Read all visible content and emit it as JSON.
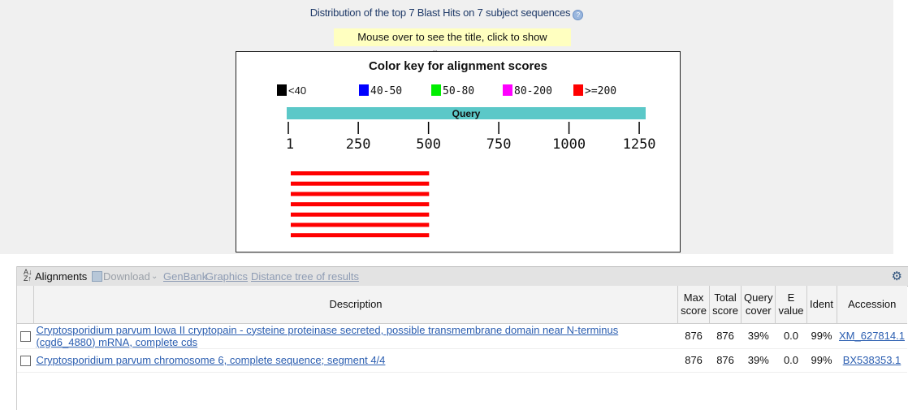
{
  "graphic": {
    "title": "Distribution of the top 7 Blast Hits on 7 subject sequences",
    "hint": "Mouse over to see the title, click to show alignments",
    "colorkey_title": "Color key for alignment scores",
    "legend": [
      {
        "label": "<40",
        "color": "#000000"
      },
      {
        "label": "40-50",
        "color": "#0000ff"
      },
      {
        "label": "50-80",
        "color": "#00ee00"
      },
      {
        "label": "80-200",
        "color": "#ff00ff"
      },
      {
        "label": ">=200",
        "color": "#ff0000"
      }
    ],
    "query_label": "Query",
    "query_color": "#5bc8c8",
    "scale_ticks": [
      "1",
      "250",
      "500",
      "750",
      "1000",
      "1250"
    ],
    "query_length": 1270,
    "hits": [
      {
        "start": 1,
        "end": 502,
        "color": "#ff0000"
      },
      {
        "start": 1,
        "end": 502,
        "color": "#ff0000"
      },
      {
        "start": 1,
        "end": 502,
        "color": "#ff0000"
      },
      {
        "start": 1,
        "end": 502,
        "color": "#ff0000"
      },
      {
        "start": 1,
        "end": 502,
        "color": "#ff0000"
      },
      {
        "start": 1,
        "end": 502,
        "color": "#ff0000"
      },
      {
        "start": 1,
        "end": 502,
        "color": "#ff0000"
      }
    ]
  },
  "toolbar": {
    "alignments": "Alignments",
    "download": "Download",
    "genbank": "GenBank",
    "graphics": "Graphics",
    "distance_tree": "Distance tree of results"
  },
  "table": {
    "headers": {
      "description": "Description",
      "max_score_1": "Max",
      "max_score_2": "score",
      "total_score_1": "Total",
      "total_score_2": "score",
      "query_cover_1": "Query",
      "query_cover_2": "cover",
      "evalue_1": "E",
      "evalue_2": "value",
      "ident": "Ident",
      "accession": "Accession"
    },
    "rows": [
      {
        "description": "Cryptosporidium parvum Iowa II cryptopain - cysteine proteinase secreted, possible transmembrane domain near N-terminus (cgd6_4880) mRNA, complete cds",
        "max_score": "876",
        "total_score": "876",
        "query_cover": "39%",
        "evalue": "0.0",
        "ident": "99%",
        "accession": "XM_627814.1"
      },
      {
        "description": "Cryptosporidium parvum chromosome 6, complete sequence; segment 4/4",
        "max_score": "876",
        "total_score": "876",
        "query_cover": "39%",
        "evalue": "0.0",
        "ident": "99%",
        "accession": "BX538353.1"
      }
    ]
  }
}
